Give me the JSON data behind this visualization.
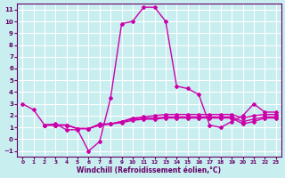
{
  "xlabel": "Windchill (Refroidissement éolien,°C)",
  "background_color": "#c8eef0",
  "grid_color": "#ffffff",
  "line_color": "#cc00aa",
  "xlim": [
    -0.5,
    23.5
  ],
  "ylim": [
    -1.5,
    11.5
  ],
  "yticks": [
    -1,
    0,
    1,
    2,
    3,
    4,
    5,
    6,
    7,
    8,
    9,
    10,
    11
  ],
  "xticks": [
    0,
    1,
    2,
    3,
    4,
    5,
    6,
    7,
    8,
    9,
    10,
    11,
    12,
    13,
    14,
    15,
    16,
    17,
    18,
    19,
    20,
    21,
    22,
    23
  ],
  "series": [
    [
      3.0,
      2.5,
      1.2,
      1.3,
      0.8,
      0.8,
      -1.0,
      -0.2,
      3.5,
      9.8,
      10.0,
      11.2,
      11.2,
      10.0,
      4.5,
      4.3,
      3.8,
      1.2,
      1.0,
      1.5,
      2.0,
      3.0,
      2.3,
      2.3
    ],
    [
      1.2,
      1.2,
      1.2,
      0.9,
      0.9,
      1.3,
      1.3,
      1.5,
      1.8,
      1.9,
      2.0,
      2.1,
      2.1,
      2.1,
      2.1,
      2.1,
      2.1,
      2.1,
      1.8,
      2.0,
      2.1,
      2.1
    ],
    [
      1.2,
      1.2,
      1.2,
      0.9,
      0.9,
      1.2,
      1.3,
      1.5,
      1.7,
      1.8,
      1.8,
      1.9,
      1.9,
      1.9,
      1.9,
      1.9,
      1.9,
      1.9,
      1.5,
      1.7,
      1.9,
      1.9
    ],
    [
      1.2,
      1.2,
      1.2,
      0.9,
      0.9,
      1.2,
      1.3,
      1.4,
      1.6,
      1.7,
      1.7,
      1.8,
      1.8,
      1.8,
      1.8,
      1.8,
      1.8,
      1.8,
      1.3,
      1.5,
      1.8,
      1.8
    ]
  ],
  "series_x": [
    [
      0,
      1,
      2,
      3,
      4,
      5,
      6,
      7,
      8,
      9,
      10,
      11,
      12,
      13,
      14,
      15,
      16,
      17,
      18,
      19,
      20,
      21,
      22,
      23
    ],
    [
      2,
      3,
      4,
      5,
      6,
      7,
      8,
      9,
      10,
      11,
      12,
      13,
      14,
      15,
      16,
      17,
      18,
      19,
      20,
      21,
      22,
      23
    ],
    [
      2,
      3,
      4,
      5,
      6,
      7,
      8,
      9,
      10,
      11,
      12,
      13,
      14,
      15,
      16,
      17,
      18,
      19,
      20,
      21,
      22,
      23
    ],
    [
      2,
      3,
      4,
      5,
      6,
      7,
      8,
      9,
      10,
      11,
      12,
      13,
      14,
      15,
      16,
      17,
      18,
      19,
      20,
      21,
      22,
      23
    ]
  ],
  "marker": "D",
  "markersize": 2.0,
  "linewidth": 1.0,
  "tick_fontsize": 5,
  "xlabel_fontsize": 5.5,
  "text_color": "#660066"
}
